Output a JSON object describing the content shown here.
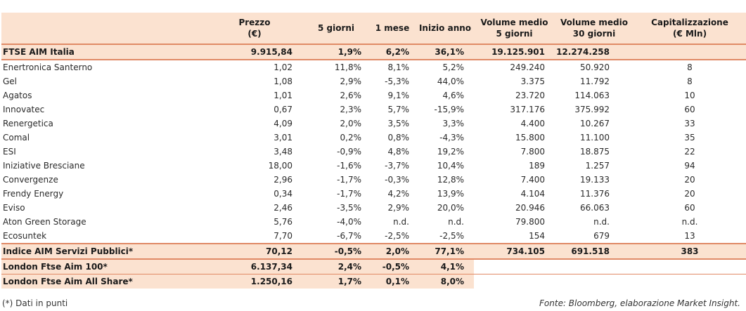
{
  "headers": [
    "",
    "Prezzo (€)",
    "5 giorni",
    "1 mese",
    "Inizio anno",
    "Volume medio 5 giorni",
    "Volume medio 30 giorni",
    "Capitalizzazione (€ Mln)"
  ],
  "header_lines": [
    [
      "",
      ""
    ],
    [
      "Prezzo",
      "(€)"
    ],
    [
      "5 giorni",
      ""
    ],
    [
      "1 mese",
      ""
    ],
    [
      "Inizio anno",
      ""
    ],
    [
      "Volume medio",
      "5 giorni"
    ],
    [
      "Volume medio",
      "30 giorni"
    ],
    [
      "Capitalizzazione",
      "(€ Mln)"
    ]
  ],
  "index_row": [
    "FTSE AIM Italia",
    "9.915,84",
    "1,9%",
    "6,2%",
    "36,1%",
    "19.125.901",
    "12.274.258",
    ""
  ],
  "rows": [
    [
      "Enertronica Santerno",
      "1,02",
      "11,8%",
      "8,1%",
      "5,2%",
      "249.240",
      "50.920",
      "8"
    ],
    [
      "Gel",
      "1,08",
      "2,9%",
      "-5,3%",
      "44,0%",
      "3.375",
      "11.792",
      "8"
    ],
    [
      "Agatos",
      "1,01",
      "2,6%",
      "9,1%",
      "4,6%",
      "23.720",
      "114.063",
      "10"
    ],
    [
      "Innovatec",
      "0,67",
      "2,3%",
      "5,7%",
      "-15,9%",
      "317.176",
      "375.992",
      "60"
    ],
    [
      "Renergetica",
      "4,09",
      "2,0%",
      "3,5%",
      "3,3%",
      "4.400",
      "10.267",
      "33"
    ],
    [
      "Comal",
      "3,01",
      "0,2%",
      "0,8%",
      "-4,3%",
      "15.800",
      "11.100",
      "35"
    ],
    [
      "ESI",
      "3,48",
      "-0,9%",
      "4,8%",
      "19,2%",
      "7.800",
      "18.875",
      "22"
    ],
    [
      "Iniziative Bresciane",
      "18,00",
      "-1,6%",
      "-3,7%",
      "10,4%",
      "189",
      "1.257",
      "94"
    ],
    [
      "Convergenze",
      "2,96",
      "-1,7%",
      "-0,3%",
      "12,8%",
      "7.400",
      "19.133",
      "20"
    ],
    [
      "Frendy Energy",
      "0,34",
      "-1,7%",
      "4,2%",
      "13,9%",
      "4.104",
      "11.376",
      "20"
    ],
    [
      "Eviso",
      "2,46",
      "-3,5%",
      "2,9%",
      "20,0%",
      "20.946",
      "66.063",
      "60"
    ],
    [
      "Aton Green Storage",
      "5,76",
      "-4,0%",
      "n.d.",
      "n.d.",
      "79.800",
      "n.d.",
      "n.d."
    ],
    [
      "Ecosuntek",
      "7,70",
      "-6,7%",
      "-2,5%",
      "-2,5%",
      "154",
      "679",
      "13"
    ]
  ],
  "servizi_row": [
    "Indice AIM Servizi Pubblici*",
    "70,12",
    "-0,5%",
    "2,0%",
    "77,1%",
    "734.105",
    "691.518",
    "383"
  ],
  "london_rows": [
    [
      "London Ftse Aim 100*",
      "6.137,34",
      "2,4%",
      "-0,5%",
      "4,1%"
    ],
    [
      "London Ftse Aim All Share*",
      "1.250,16",
      "1,7%",
      "0,1%",
      "8,0%"
    ]
  ],
  "footnote": "(*) Dati in punti",
  "source": "Fonte: Bloomberg, elaborazione Market Insight.",
  "colors": {
    "header_bg": "#fbe2d0",
    "rule": "#e08a66"
  }
}
